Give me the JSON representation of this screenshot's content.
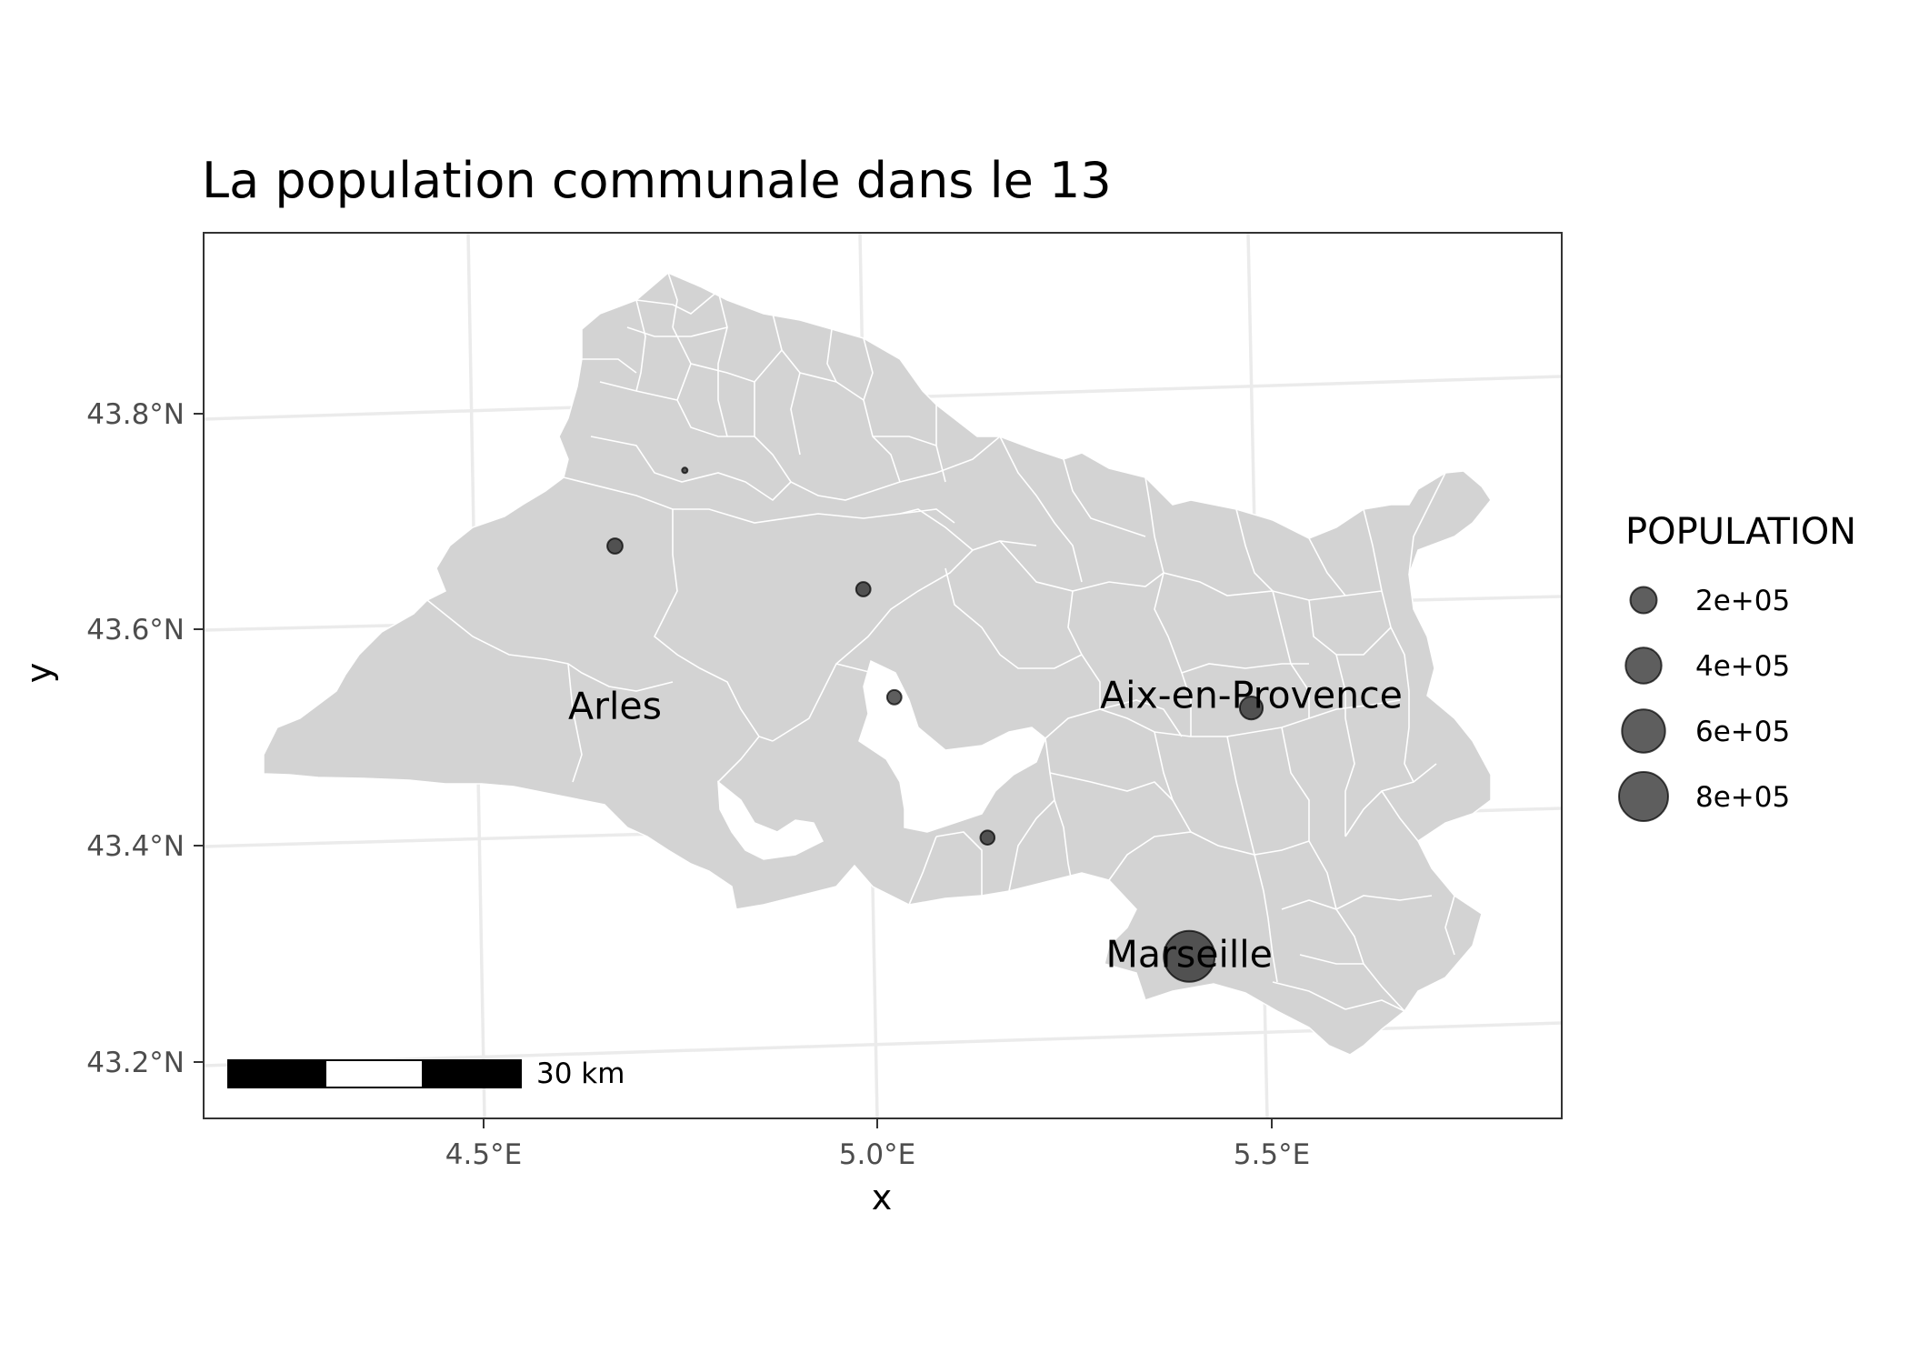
{
  "title": "La population communale dans le 13",
  "axes": {
    "x_label": "x",
    "y_label": "y",
    "x_ticks": [
      "4.5°E",
      "5.0°E",
      "5.5°E"
    ],
    "y_ticks": [
      "43.8°N",
      "43.6°N",
      "43.4°N",
      "43.2°N"
    ]
  },
  "legend": {
    "title": "POPULATION",
    "entries": [
      {
        "label": "2e+05",
        "value": 200000
      },
      {
        "label": "4e+05",
        "value": 400000
      },
      {
        "label": "6e+05",
        "value": 600000
      },
      {
        "label": "8e+05",
        "value": 800000
      }
    ]
  },
  "scale_bar": {
    "label": "30 km"
  },
  "city_labels": [
    {
      "name": "Arles",
      "lon": 4.63,
      "lat": 43.52
    },
    {
      "name": "Aix-en-Provence",
      "lon": 5.45,
      "lat": 43.53
    },
    {
      "name": "Marseille",
      "lon": 5.37,
      "lat": 43.29
    }
  ],
  "map_data": {
    "type": "proportional-symbol-map",
    "xlim": [
      4.1,
      5.85
    ],
    "ylim": [
      43.15,
      43.97
    ],
    "ellipsoid_lat0": 43.5,
    "region_fill": "#d3d3d3",
    "border_color": "#ffffff",
    "point_fill": "#1a1a1a",
    "gridline_color": "#ebebeb",
    "points": [
      {
        "lon": 5.37,
        "lat": 43.3,
        "population": 862000
      },
      {
        "lon": 5.45,
        "lat": 43.53,
        "population": 143000
      },
      {
        "lon": 4.63,
        "lat": 43.68,
        "population": 52000
      },
      {
        "lon": 4.99,
        "lat": 43.54,
        "population": 44000
      },
      {
        "lon": 4.95,
        "lat": 43.64,
        "population": 45000
      },
      {
        "lon": 5.11,
        "lat": 43.41,
        "population": 43000
      },
      {
        "lon": 4.72,
        "lat": 43.75,
        "population": 1200
      }
    ]
  }
}
